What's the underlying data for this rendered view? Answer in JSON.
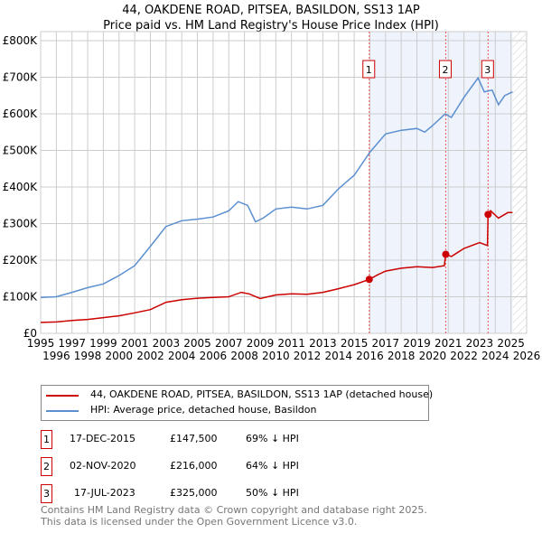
{
  "title": "44, OAKDENE ROAD, PITSEA, BASILDON, SS13 1AP",
  "subtitle": "Price paid vs. HM Land Registry's House Price Index (HPI)",
  "colors": {
    "red": "#cc0000",
    "blue": "#5b8fd0",
    "shade": "#eef3fc"
  },
  "chart_data": {
    "type": "line",
    "xlim": [
      1995,
      2026
    ],
    "ylim": [
      0,
      800000
    ],
    "xticks": [
      "1995",
      "1996",
      "1997",
      "1998",
      "1999",
      "2000",
      "2001",
      "2002",
      "2003",
      "2004",
      "2005",
      "2006",
      "2007",
      "2008",
      "2009",
      "2010",
      "2011",
      "2012",
      "2013",
      "2014",
      "2015",
      "2016",
      "2017",
      "2018",
      "2019",
      "2020",
      "2021",
      "2022",
      "2023",
      "2024",
      "2025",
      "2026"
    ],
    "yticks": [
      {
        "v": 0,
        "label": "£0"
      },
      {
        "v": 100000,
        "label": "£100K"
      },
      {
        "v": 200000,
        "label": "£200K"
      },
      {
        "v": 300000,
        "label": "£300K"
      },
      {
        "v": 400000,
        "label": "£400K"
      },
      {
        "v": 500000,
        "label": "£500K"
      },
      {
        "v": 600000,
        "label": "£600K"
      },
      {
        "v": 700000,
        "label": "£700K"
      },
      {
        "v": 800000,
        "label": "£800K"
      }
    ],
    "shaded_range": [
      2015.96,
      2025.1
    ],
    "future_hatch_from": 2025.1,
    "series": [
      {
        "name": "44, OAKDENE ROAD, PITSEA, BASILDON, SS13 1AP (detached house)",
        "color": "#cc0000",
        "x": [
          1995,
          1996,
          1997,
          1998,
          1999,
          2000,
          2001,
          2002,
          2003,
          2004,
          2005,
          2006,
          2007,
          2007.8,
          2008.3,
          2009,
          2010,
          2011,
          2012,
          2013,
          2014,
          2015,
          2015.96,
          2016.5,
          2017,
          2018,
          2019,
          2020,
          2020.75,
          2020.84,
          2021.2,
          2022,
          2023,
          2023.5,
          2023.54,
          2023.7,
          2024.2,
          2024.8,
          2025.1
        ],
        "y": [
          30000,
          31000,
          35000,
          38000,
          43000,
          48000,
          56000,
          65000,
          85000,
          92000,
          96000,
          98000,
          100000,
          112000,
          108000,
          95000,
          105000,
          108000,
          107000,
          112000,
          122000,
          133000,
          147500,
          160000,
          170000,
          178000,
          182000,
          180000,
          185000,
          216000,
          210000,
          232000,
          248000,
          240000,
          325000,
          335000,
          315000,
          330000,
          330000
        ]
      },
      {
        "name": "HPI: Average price, detached house, Basildon",
        "color": "#5b8fd0",
        "x": [
          1995,
          1996,
          1997,
          1998,
          1999,
          2000,
          2001,
          2002,
          2003,
          2004,
          2005,
          2006,
          2007,
          2007.6,
          2008.2,
          2008.7,
          2009.2,
          2010,
          2011,
          2012,
          2013,
          2014,
          2015,
          2016,
          2017,
          2018,
          2019,
          2019.5,
          2020,
          2020.8,
          2021.2,
          2022,
          2022.9,
          2023.3,
          2023.8,
          2024.2,
          2024.6,
          2025.1
        ],
        "y": [
          98000,
          100000,
          112000,
          125000,
          135000,
          158000,
          185000,
          238000,
          292000,
          308000,
          312000,
          318000,
          335000,
          360000,
          350000,
          305000,
          315000,
          340000,
          345000,
          340000,
          350000,
          395000,
          432000,
          495000,
          545000,
          555000,
          560000,
          550000,
          568000,
          600000,
          590000,
          645000,
          698000,
          660000,
          665000,
          625000,
          650000,
          660000
        ]
      }
    ],
    "sales": [
      {
        "label": "1",
        "x": 2015.96,
        "y": 147500
      },
      {
        "label": "2",
        "x": 2020.84,
        "y": 216000
      },
      {
        "label": "3",
        "x": 2023.54,
        "y": 325000
      }
    ]
  },
  "legend": {
    "items": [
      "44, OAKDENE ROAD, PITSEA, BASILDON, SS13 1AP (detached house)",
      "HPI: Average price, detached house, Basildon"
    ]
  },
  "table": [
    {
      "num": "1",
      "date": "17-DEC-2015",
      "price": "£147,500",
      "hpi": "69% ↓ HPI"
    },
    {
      "num": "2",
      "date": "02-NOV-2020",
      "price": "£216,000",
      "hpi": "64% ↓ HPI"
    },
    {
      "num": "3",
      "date": "17-JUL-2023",
      "price": "£325,000",
      "hpi": "50% ↓ HPI"
    }
  ],
  "footer": [
    "Contains HM Land Registry data © Crown copyright and database right 2025.",
    "This data is licensed under the Open Government Licence v3.0."
  ]
}
